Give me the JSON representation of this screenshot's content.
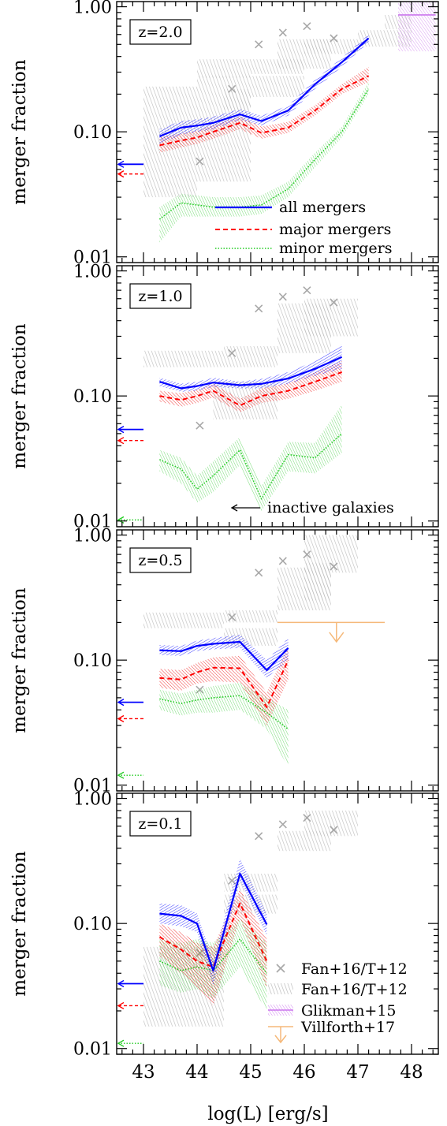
{
  "figure": {
    "xlabel": "log(L) [erg/s]",
    "ylabel": "merger fraction",
    "xlim": [
      42.5,
      48.5
    ],
    "ylim": [
      0.009,
      1.1
    ],
    "y_scale": "log",
    "xticks": [
      "43",
      "44",
      "45",
      "46",
      "47",
      "48"
    ],
    "yticks": [
      {
        "value": 1.0,
        "label": "1.00"
      },
      {
        "value": 0.1,
        "label": "0.10"
      },
      {
        "value": 0.01,
        "label": "0.01"
      }
    ]
  },
  "colors": {
    "all": "#0000ff",
    "major": "#ff0000",
    "minor": "#22cc22",
    "fan": "#c0c0c0",
    "glikman": "#cc77ee",
    "villforth": "#f5b97a"
  },
  "legend_series": {
    "all": "all mergers",
    "major": "major mergers",
    "minor": "minor mergers"
  },
  "legend_obs": {
    "fan_points": "Fan+16/T+12",
    "fan_boxes": "Fan+16/T+12",
    "glikman": "Glikman+15",
    "villforth": "Villforth+17"
  },
  "inactive_label": "inactive galaxies",
  "chart_data": [
    {
      "type": "line",
      "panel_label": "z=2.0",
      "x": [
        43.3,
        43.7,
        44.0,
        44.3,
        44.8,
        45.2,
        45.7,
        46.2,
        46.7,
        47.2
      ],
      "series": [
        {
          "name": "all mergers",
          "key": "all",
          "values": [
            0.092,
            0.108,
            0.112,
            0.118,
            0.138,
            0.122,
            0.148,
            0.24,
            0.36,
            0.56
          ],
          "lo": [
            0.08,
            0.095,
            0.1,
            0.105,
            0.125,
            0.112,
            0.135,
            0.22,
            0.33,
            0.52
          ],
          "hi": [
            0.105,
            0.122,
            0.126,
            0.132,
            0.152,
            0.134,
            0.162,
            0.26,
            0.39,
            0.6
          ]
        },
        {
          "name": "major mergers",
          "key": "major",
          "values": [
            0.078,
            0.085,
            0.09,
            0.1,
            0.118,
            0.098,
            0.108,
            0.148,
            0.22,
            0.28
          ],
          "lo": [
            0.068,
            0.075,
            0.08,
            0.088,
            0.105,
            0.088,
            0.098,
            0.135,
            0.2,
            0.25
          ],
          "hi": [
            0.09,
            0.097,
            0.102,
            0.113,
            0.132,
            0.11,
            0.12,
            0.163,
            0.24,
            0.33
          ]
        },
        {
          "name": "minor mergers",
          "key": "minor",
          "values": [
            0.02,
            0.027,
            0.026,
            0.025,
            0.025,
            0.026,
            0.035,
            0.06,
            0.1,
            0.22
          ],
          "lo": [
            0.013,
            0.021,
            0.021,
            0.021,
            0.021,
            0.022,
            0.03,
            0.052,
            0.09,
            0.2
          ],
          "hi": [
            0.025,
            0.032,
            0.031,
            0.03,
            0.03,
            0.031,
            0.04,
            0.068,
            0.11,
            0.25
          ]
        }
      ],
      "inactive": {
        "all": 0.055,
        "major": 0.046,
        "minor": null
      },
      "fan_points": [
        {
          "x": 44.05,
          "y": 0.058
        },
        {
          "x": 44.65,
          "y": 0.22
        },
        {
          "x": 45.15,
          "y": 0.5
        },
        {
          "x": 45.6,
          "y": 0.62
        },
        {
          "x": 46.05,
          "y": 0.7
        },
        {
          "x": 46.55,
          "y": 0.56
        }
      ],
      "fan_boxes": [
        {
          "x": [
            43.0,
            44.0
          ],
          "y": [
            0.03,
            0.23
          ]
        },
        {
          "x": [
            44.0,
            45.0
          ],
          "y": [
            0.04,
            0.28
          ]
        },
        {
          "x": [
            44.5,
            45.0
          ],
          "y": [
            0.15,
            0.22
          ]
        },
        {
          "x": [
            44.0,
            45.0
          ],
          "y": [
            0.27,
            0.38
          ]
        },
        {
          "x": [
            45.0,
            46.0
          ],
          "y": [
            0.29,
            0.38
          ]
        },
        {
          "x": [
            45.0,
            46.0
          ],
          "y": [
            0.19,
            0.28
          ]
        },
        {
          "x": [
            45.5,
            46.5
          ],
          "y": [
            0.32,
            0.55
          ]
        },
        {
          "x": [
            46.0,
            47.0
          ],
          "y": [
            0.42,
            0.55
          ]
        },
        {
          "x": [
            47.0,
            48.0
          ],
          "y": [
            0.48,
            0.65
          ]
        },
        {
          "x": [
            47.5,
            48.0
          ],
          "y": [
            0.66,
            0.86
          ]
        }
      ],
      "glikman": {
        "x": [
          47.75,
          48.45
        ],
        "y": [
          0.44,
          1.2
        ],
        "value": 0.86
      },
      "villforth": null
    },
    {
      "type": "line",
      "panel_label": "z=1.0",
      "x": [
        43.3,
        43.7,
        44.0,
        44.3,
        44.8,
        45.2,
        45.7,
        46.2,
        46.7
      ],
      "series": [
        {
          "name": "all mergers",
          "key": "all",
          "values": [
            0.13,
            0.115,
            0.12,
            0.128,
            0.122,
            0.125,
            0.138,
            0.165,
            0.205
          ],
          "lo": [
            0.12,
            0.108,
            0.11,
            0.118,
            0.115,
            0.115,
            0.125,
            0.145,
            0.165
          ],
          "hi": [
            0.14,
            0.125,
            0.13,
            0.14,
            0.13,
            0.137,
            0.155,
            0.19,
            0.26
          ]
        },
        {
          "name": "major mergers",
          "key": "major",
          "values": [
            0.1,
            0.093,
            0.1,
            0.11,
            0.084,
            0.1,
            0.11,
            0.13,
            0.155
          ],
          "lo": [
            0.09,
            0.082,
            0.088,
            0.097,
            0.074,
            0.088,
            0.095,
            0.11,
            0.13
          ],
          "hi": [
            0.11,
            0.105,
            0.112,
            0.125,
            0.095,
            0.115,
            0.127,
            0.155,
            0.19
          ]
        },
        {
          "name": "minor mergers",
          "key": "minor",
          "values": [
            0.031,
            0.026,
            0.018,
            0.023,
            0.037,
            0.015,
            0.034,
            0.032,
            0.05
          ],
          "lo": [
            0.025,
            0.02,
            0.014,
            0.017,
            0.028,
            0.012,
            0.025,
            0.024,
            0.035
          ],
          "hi": [
            0.037,
            0.032,
            0.023,
            0.03,
            0.047,
            0.019,
            0.043,
            0.042,
            0.085
          ]
        }
      ],
      "inactive": {
        "all": 0.054,
        "major": 0.044,
        "minor": 0.0102
      },
      "fan_points": [
        {
          "x": 44.05,
          "y": 0.058
        },
        {
          "x": 44.65,
          "y": 0.22
        },
        {
          "x": 45.15,
          "y": 0.5
        },
        {
          "x": 45.6,
          "y": 0.62
        },
        {
          "x": 46.05,
          "y": 0.7
        },
        {
          "x": 46.55,
          "y": 0.56
        }
      ],
      "fan_boxes": [
        {
          "x": [
            43.0,
            44.5
          ],
          "y": [
            0.17,
            0.23
          ]
        },
        {
          "x": [
            44.5,
            45.5
          ],
          "y": [
            0.17,
            0.25
          ]
        },
        {
          "x": [
            44.3,
            45.5
          ],
          "y": [
            0.065,
            0.13
          ]
        },
        {
          "x": [
            45.5,
            46.5
          ],
          "y": [
            0.22,
            0.55
          ]
        },
        {
          "x": [
            46.0,
            47.0
          ],
          "y": [
            0.3,
            0.6
          ]
        }
      ],
      "glikman": null,
      "villforth": null
    },
    {
      "type": "line",
      "panel_label": "z=0.5",
      "x": [
        43.3,
        43.7,
        44.0,
        44.3,
        44.8,
        45.3,
        45.7
      ],
      "series": [
        {
          "name": "all mergers",
          "key": "all",
          "values": [
            0.12,
            0.118,
            0.13,
            0.135,
            0.14,
            0.083,
            0.125
          ],
          "lo": [
            0.11,
            0.108,
            0.118,
            0.122,
            0.125,
            0.072,
            0.1
          ],
          "hi": [
            0.132,
            0.13,
            0.143,
            0.15,
            0.16,
            0.1,
            0.15
          ]
        },
        {
          "name": "major mergers",
          "key": "major",
          "values": [
            0.072,
            0.07,
            0.08,
            0.087,
            0.086,
            0.042,
            0.1
          ],
          "lo": [
            0.06,
            0.057,
            0.065,
            0.068,
            0.066,
            0.03,
            0.07
          ],
          "hi": [
            0.085,
            0.083,
            0.095,
            0.105,
            0.108,
            0.055,
            0.13
          ]
        },
        {
          "name": "minor mergers",
          "key": "minor",
          "values": [
            0.049,
            0.045,
            0.048,
            0.05,
            0.052,
            0.038,
            0.028
          ],
          "lo": [
            0.04,
            0.036,
            0.038,
            0.038,
            0.04,
            0.028,
            0.014
          ],
          "hi": [
            0.058,
            0.054,
            0.058,
            0.062,
            0.066,
            0.05,
            0.04
          ]
        }
      ],
      "inactive": {
        "all": 0.046,
        "major": 0.034,
        "minor": 0.012
      },
      "fan_points": [
        {
          "x": 44.05,
          "y": 0.058
        },
        {
          "x": 44.65,
          "y": 0.22
        },
        {
          "x": 45.15,
          "y": 0.5
        },
        {
          "x": 45.6,
          "y": 0.62
        },
        {
          "x": 46.05,
          "y": 0.7
        },
        {
          "x": 46.55,
          "y": 0.56
        }
      ],
      "fan_boxes": [
        {
          "x": [
            43.0,
            44.5
          ],
          "y": [
            0.18,
            0.24
          ]
        },
        {
          "x": [
            44.5,
            45.5
          ],
          "y": [
            0.2,
            0.25
          ]
        },
        {
          "x": [
            44.5,
            45.5
          ],
          "y": [
            0.13,
            0.18
          ]
        },
        {
          "x": [
            45.5,
            46.5
          ],
          "y": [
            0.25,
            0.55
          ]
        },
        {
          "x": [
            46.0,
            47.0
          ],
          "y": [
            0.5,
            1.0
          ]
        },
        {
          "x": [
            46.0,
            46.5
          ],
          "y": [
            0.3,
            0.6
          ]
        }
      ],
      "glikman": null,
      "villforth": {
        "x": [
          45.5,
          47.5
        ],
        "y": 0.2,
        "arrow_x": 46.6,
        "arrow_to": 0.14
      }
    },
    {
      "type": "line",
      "panel_label": "z=0.1",
      "x": [
        43.3,
        43.7,
        44.0,
        44.3,
        44.8,
        45.3
      ],
      "series": [
        {
          "name": "all mergers",
          "key": "all",
          "values": [
            0.12,
            0.115,
            0.1,
            0.042,
            0.25,
            0.098
          ],
          "lo": [
            0.1,
            0.095,
            0.085,
            0.032,
            0.22,
            0.08
          ],
          "hi": [
            0.145,
            0.14,
            0.12,
            0.05,
            0.33,
            0.12
          ]
        },
        {
          "name": "major mergers",
          "key": "major",
          "values": [
            0.078,
            0.062,
            0.05,
            0.045,
            0.145,
            0.05
          ],
          "lo": [
            0.055,
            0.04,
            0.03,
            0.022,
            0.11,
            0.03
          ],
          "hi": [
            0.1,
            0.085,
            0.07,
            0.065,
            0.19,
            0.075
          ]
        },
        {
          "name": "minor mergers",
          "key": "minor",
          "values": [
            0.05,
            0.042,
            0.045,
            0.042,
            0.075,
            0.04
          ],
          "lo": [
            0.032,
            0.028,
            0.03,
            0.025,
            0.045,
            0.02
          ],
          "hi": [
            0.075,
            0.07,
            0.075,
            0.07,
            0.11,
            0.07
          ]
        }
      ],
      "inactive": {
        "all": 0.033,
        "major": 0.022,
        "minor": 0.011
      },
      "fan_points": [
        {
          "x": 44.05,
          "y": 0.058
        },
        {
          "x": 44.65,
          "y": 0.22
        },
        {
          "x": 45.15,
          "y": 0.5
        },
        {
          "x": 45.6,
          "y": 0.62
        },
        {
          "x": 46.05,
          "y": 0.7
        },
        {
          "x": 46.55,
          "y": 0.56
        }
      ],
      "fan_boxes": [
        {
          "x": [
            43.0,
            44.5
          ],
          "y": [
            0.015,
            0.065
          ]
        },
        {
          "x": [
            44.5,
            45.5
          ],
          "y": [
            0.18,
            0.25
          ]
        },
        {
          "x": [
            44.5,
            45.5
          ],
          "y": [
            0.12,
            0.17
          ]
        },
        {
          "x": [
            45.5,
            46.5
          ],
          "y": [
            0.38,
            0.55
          ]
        },
        {
          "x": [
            46.0,
            47.0
          ],
          "y": [
            0.5,
            0.8
          ]
        }
      ],
      "glikman": null,
      "villforth": null
    }
  ]
}
